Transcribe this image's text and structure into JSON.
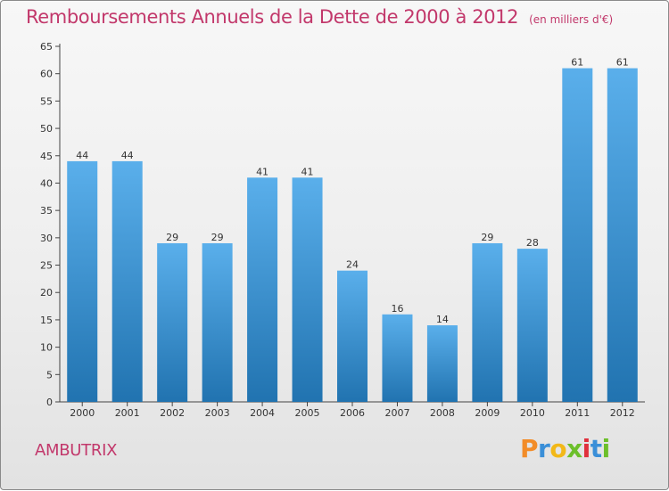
{
  "header": {
    "title": "Remboursements Annuels de la Dette de 2000 à 2012",
    "subtitle": "(en milliers d'€)"
  },
  "footer": {
    "commune": "AMBUTRIX",
    "logo": {
      "text": "Proxiti",
      "letter_colors": [
        "#f28c28",
        "#3a8fd8",
        "#f2b818",
        "#6cbf2a",
        "#e0303c",
        "#3a8fd8",
        "#6cbf2a"
      ]
    }
  },
  "colors": {
    "bar_top": "#5aafeb",
    "bar_bottom": "#2173b0",
    "title": "#c2386b",
    "axis": "#333333"
  },
  "chart_data": {
    "type": "bar",
    "categories": [
      "2000",
      "2001",
      "2002",
      "2003",
      "2004",
      "2005",
      "2006",
      "2007",
      "2008",
      "2009",
      "2010",
      "2011",
      "2012"
    ],
    "values": [
      44,
      44,
      29,
      29,
      41,
      41,
      24,
      16,
      14,
      29,
      28,
      61,
      61
    ],
    "data_labels": [
      "44",
      "44",
      "29",
      "29",
      "41",
      "41",
      "24",
      "16",
      "14",
      "29",
      "28",
      "61",
      "61"
    ],
    "title": "Remboursements Annuels de la Dette de 2000 à 2012",
    "subtitle": "(en milliers d'€)",
    "xlabel": "",
    "ylabel": "",
    "ylim": [
      0,
      65
    ],
    "yticks": [
      0,
      5,
      10,
      15,
      20,
      25,
      30,
      35,
      40,
      45,
      50,
      55,
      60,
      65
    ],
    "grid": false,
    "legend": "none"
  }
}
